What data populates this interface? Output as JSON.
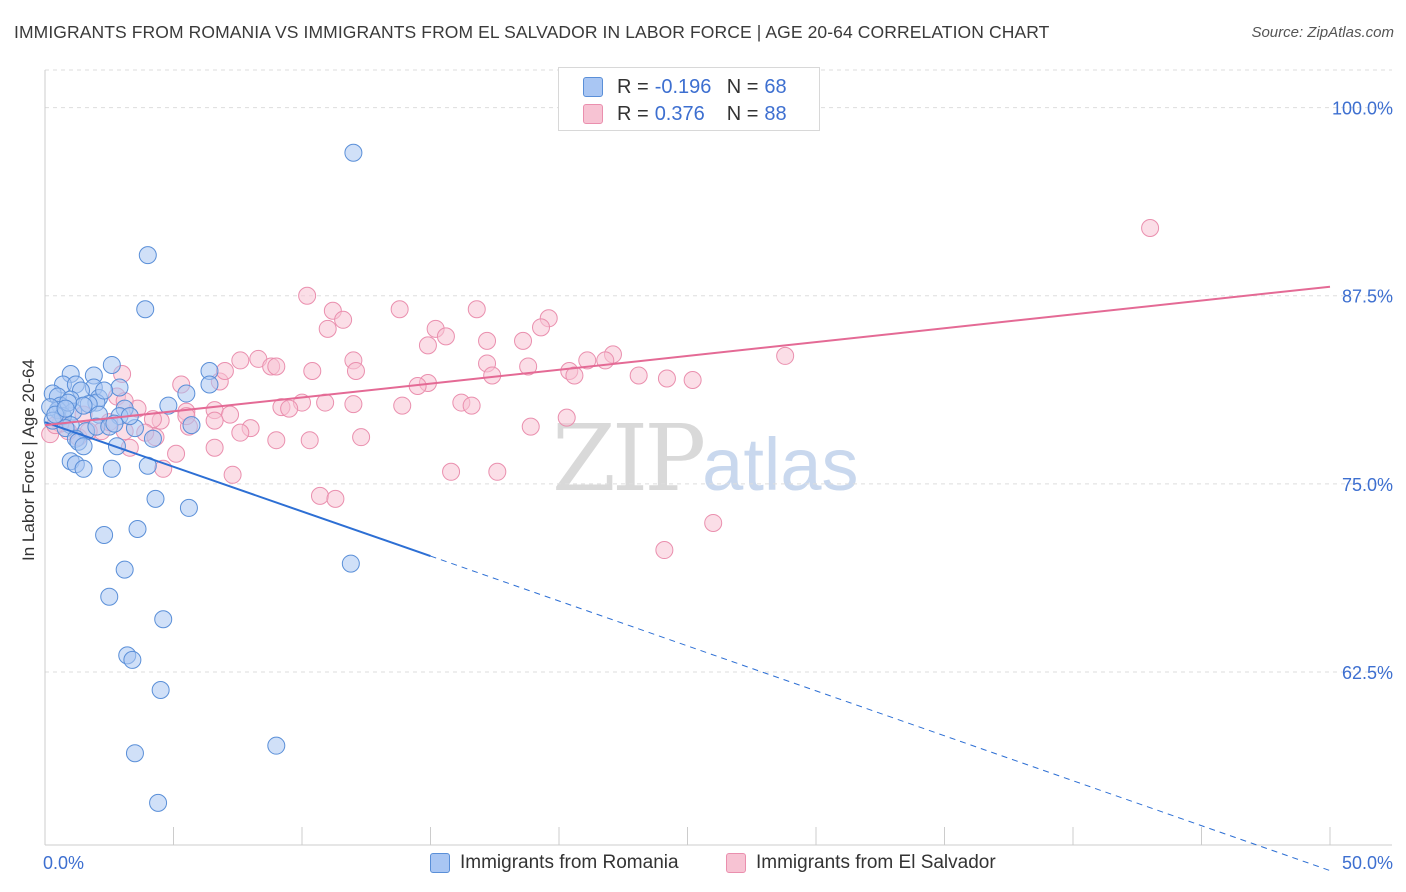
{
  "header": {
    "title": "IMMIGRANTS FROM ROMANIA VS IMMIGRANTS FROM EL SALVADOR IN LABOR FORCE | AGE 20-64 CORRELATION CHART",
    "source": "Source: ZipAtlas.com"
  },
  "watermark": {
    "zip": "ZIP",
    "atlas": "atlas"
  },
  "legend": {
    "rows": [
      {
        "r_label": "R =",
        "r_value": "-0.196",
        "n_label": "N =",
        "n_value": "68",
        "color": "#8fb4ee"
      },
      {
        "r_label": "R =",
        "r_value": "0.376",
        "n_label": "N =",
        "n_value": "88",
        "color": "#f4a8c0"
      }
    ]
  },
  "bottom_legend": {
    "series1": "Immigrants from Romania",
    "series2": "Immigrants from El Salvador"
  },
  "colors": {
    "romania_fill": "#a9c6f3",
    "romania_stroke": "#5a8fd8",
    "romania_line": "#2d6fd4",
    "salvador_fill": "#f7c3d3",
    "salvador_stroke": "#ea8fae",
    "salvador_line": "#e46a95",
    "tick_label": "#3d6fd0",
    "grid": "#dddddd"
  },
  "chart_data": {
    "type": "scatter",
    "title": "IMMIGRANTS FROM ROMANIA VS IMMIGRANTS FROM EL SALVADOR IN LABOR FORCE | AGE 20-64 CORRELATION CHART",
    "xlabel": "",
    "ylabel": "In Labor Force | Age 20-64",
    "xlim": [
      0,
      50
    ],
    "ylim": [
      51,
      102.5
    ],
    "x_tick_labels": [
      "0.0%",
      "50.0%"
    ],
    "y_ticks": [
      100.0,
      87.5,
      75.0,
      62.5
    ],
    "y_tick_labels": [
      "100.0%",
      "87.5%",
      "75.0%",
      "62.5%"
    ],
    "grid": true,
    "legend_position": "top-center",
    "series": [
      {
        "name": "Immigrants from Romania",
        "r": -0.196,
        "n": 68,
        "trend": {
          "x": [
            0.0,
            15.0,
            50.0
          ],
          "y": [
            79.1,
            70.2,
            49.3
          ],
          "solid_until_x": 15.0
        },
        "points": [
          [
            12.0,
            97.0
          ],
          [
            4.0,
            90.2
          ],
          [
            3.9,
            86.6
          ],
          [
            2.6,
            82.9
          ],
          [
            1.0,
            82.3
          ],
          [
            1.9,
            82.2
          ],
          [
            6.4,
            82.5
          ],
          [
            0.7,
            81.6
          ],
          [
            1.2,
            81.6
          ],
          [
            1.9,
            81.4
          ],
          [
            2.9,
            81.4
          ],
          [
            1.4,
            81.2
          ],
          [
            0.3,
            81.0
          ],
          [
            0.5,
            80.8
          ],
          [
            1.0,
            80.6
          ],
          [
            2.1,
            80.7
          ],
          [
            2.0,
            80.4
          ],
          [
            0.6,
            80.2
          ],
          [
            1.7,
            80.3
          ],
          [
            0.5,
            79.9
          ],
          [
            0.2,
            80.1
          ],
          [
            3.1,
            80.0
          ],
          [
            1.1,
            79.8
          ],
          [
            0.7,
            79.5
          ],
          [
            2.1,
            79.6
          ],
          [
            2.9,
            79.5
          ],
          [
            0.3,
            79.2
          ],
          [
            1.0,
            78.9
          ],
          [
            0.8,
            78.7
          ],
          [
            1.6,
            78.5
          ],
          [
            2.0,
            78.8
          ],
          [
            1.2,
            78.0
          ],
          [
            2.5,
            78.8
          ],
          [
            3.5,
            78.7
          ],
          [
            5.7,
            78.9
          ],
          [
            4.2,
            78.0
          ],
          [
            1.3,
            77.8
          ],
          [
            1.5,
            77.5
          ],
          [
            2.8,
            77.5
          ],
          [
            1.0,
            76.5
          ],
          [
            1.2,
            76.3
          ],
          [
            1.5,
            76.0
          ],
          [
            2.6,
            76.0
          ],
          [
            4.0,
            76.2
          ],
          [
            4.3,
            74.0
          ],
          [
            5.6,
            73.4
          ],
          [
            3.6,
            72.0
          ],
          [
            2.3,
            71.6
          ],
          [
            11.9,
            69.7
          ],
          [
            3.1,
            69.3
          ],
          [
            2.5,
            67.5
          ],
          [
            4.6,
            66.0
          ],
          [
            3.2,
            63.6
          ],
          [
            3.4,
            63.3
          ],
          [
            4.5,
            61.3
          ],
          [
            9.0,
            57.6
          ],
          [
            3.5,
            57.1
          ],
          [
            4.4,
            53.8
          ],
          [
            3.3,
            79.5
          ],
          [
            2.3,
            81.2
          ],
          [
            1.5,
            80.2
          ],
          [
            0.9,
            80.4
          ],
          [
            4.8,
            80.2
          ],
          [
            2.7,
            79.0
          ],
          [
            0.4,
            79.6
          ],
          [
            0.8,
            80.0
          ],
          [
            6.4,
            81.6
          ],
          [
            5.5,
            81.0
          ]
        ]
      },
      {
        "name": "Immigrants from El Salvador",
        "r": 0.376,
        "n": 88,
        "trend": {
          "x": [
            0.0,
            50.0
          ],
          "y": [
            78.9,
            88.1
          ]
        },
        "points": [
          [
            43.0,
            92.0
          ],
          [
            10.2,
            87.5
          ],
          [
            11.2,
            86.5
          ],
          [
            13.8,
            86.6
          ],
          [
            16.8,
            86.6
          ],
          [
            19.6,
            86.0
          ],
          [
            11.6,
            85.9
          ],
          [
            11.0,
            85.3
          ],
          [
            15.2,
            85.3
          ],
          [
            19.3,
            85.4
          ],
          [
            15.6,
            84.8
          ],
          [
            17.2,
            84.5
          ],
          [
            14.9,
            84.2
          ],
          [
            18.6,
            84.5
          ],
          [
            21.1,
            83.2
          ],
          [
            22.1,
            83.6
          ],
          [
            21.8,
            83.2
          ],
          [
            12.0,
            83.2
          ],
          [
            7.6,
            83.2
          ],
          [
            8.3,
            83.3
          ],
          [
            8.8,
            82.8
          ],
          [
            17.2,
            83.0
          ],
          [
            18.8,
            82.8
          ],
          [
            10.4,
            82.5
          ],
          [
            12.1,
            82.5
          ],
          [
            17.4,
            82.2
          ],
          [
            23.1,
            82.2
          ],
          [
            24.2,
            82.0
          ],
          [
            25.2,
            81.9
          ],
          [
            6.8,
            81.8
          ],
          [
            7.0,
            82.5
          ],
          [
            14.9,
            81.7
          ],
          [
            14.5,
            81.5
          ],
          [
            20.4,
            82.5
          ],
          [
            20.6,
            82.2
          ],
          [
            28.8,
            83.5
          ],
          [
            9.0,
            82.8
          ],
          [
            3.0,
            82.3
          ],
          [
            5.3,
            81.6
          ],
          [
            10.9,
            80.4
          ],
          [
            10.0,
            80.4
          ],
          [
            12.0,
            80.3
          ],
          [
            16.2,
            80.4
          ],
          [
            16.6,
            80.2
          ],
          [
            9.2,
            80.1
          ],
          [
            9.5,
            80.0
          ],
          [
            13.9,
            80.2
          ],
          [
            20.3,
            79.4
          ],
          [
            3.6,
            80.0
          ],
          [
            5.5,
            79.8
          ],
          [
            6.6,
            79.9
          ],
          [
            7.2,
            79.6
          ],
          [
            6.6,
            79.2
          ],
          [
            4.5,
            79.2
          ],
          [
            5.6,
            78.8
          ],
          [
            8.0,
            78.7
          ],
          [
            7.6,
            78.4
          ],
          [
            2.2,
            78.5
          ],
          [
            3.1,
            78.5
          ],
          [
            4.3,
            78.1
          ],
          [
            9.0,
            77.9
          ],
          [
            10.3,
            77.9
          ],
          [
            12.3,
            78.1
          ],
          [
            18.9,
            78.8
          ],
          [
            6.6,
            77.4
          ],
          [
            5.1,
            77.0
          ],
          [
            3.3,
            77.4
          ],
          [
            7.3,
            75.6
          ],
          [
            4.6,
            76.0
          ],
          [
            15.8,
            75.8
          ],
          [
            10.7,
            74.2
          ],
          [
            11.3,
            74.0
          ],
          [
            17.6,
            75.8
          ],
          [
            26.0,
            72.4
          ],
          [
            24.1,
            70.6
          ],
          [
            1.3,
            78.1
          ],
          [
            1.7,
            78.5
          ],
          [
            0.2,
            78.3
          ],
          [
            0.9,
            78.5
          ],
          [
            0.6,
            79.0
          ],
          [
            2.5,
            79.1
          ],
          [
            4.2,
            79.3
          ],
          [
            3.9,
            78.4
          ],
          [
            1.5,
            79.6
          ],
          [
            2.8,
            80.8
          ],
          [
            3.1,
            80.5
          ],
          [
            0.4,
            78.9
          ],
          [
            5.5,
            79.5
          ]
        ]
      }
    ]
  }
}
